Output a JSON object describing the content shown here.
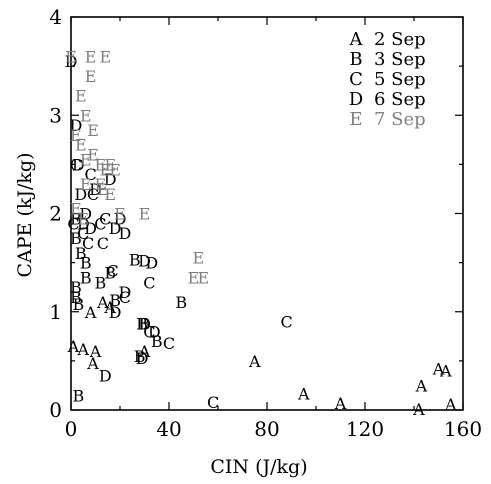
{
  "chart_data": {
    "type": "scatter",
    "xlabel": "CIN (J/kg)",
    "ylabel": "CAPE (kJ/kg)",
    "xlim": [
      0,
      160
    ],
    "ylim": [
      0,
      4
    ],
    "xticks": [
      "0",
      "40",
      "80",
      "120",
      "160"
    ],
    "yticks": [
      "0",
      "1",
      "2",
      "3",
      "4"
    ],
    "grid": false,
    "legend_position": "top-right",
    "series": [
      {
        "name": "A",
        "date": "2 Sep",
        "color": "#000000",
        "points": [
          [
            1,
            0.65
          ],
          [
            5,
            0.62
          ],
          [
            10,
            0.6
          ],
          [
            9,
            0.48
          ],
          [
            13,
            1.1
          ],
          [
            16,
            1.05
          ],
          [
            8,
            1.0
          ],
          [
            30,
            0.6
          ],
          [
            75,
            0.5
          ],
          [
            95,
            0.17
          ],
          [
            110,
            0.07
          ],
          [
            143,
            0.25
          ],
          [
            150,
            0.42
          ],
          [
            153,
            0.4
          ],
          [
            155,
            0.06
          ],
          [
            142,
            0.01
          ]
        ]
      },
      {
        "name": "B",
        "date": "3 Sep",
        "color": "#000000",
        "points": [
          [
            3,
            0.15
          ],
          [
            3,
            1.08
          ],
          [
            2,
            1.75
          ],
          [
            2,
            1.95
          ],
          [
            6,
            1.35
          ],
          [
            12,
            1.3
          ],
          [
            16,
            1.4
          ],
          [
            18,
            1.12
          ],
          [
            26,
            1.53
          ],
          [
            45,
            1.1
          ],
          [
            29,
            0.88
          ],
          [
            30,
            0.88
          ],
          [
            28,
            0.55
          ],
          [
            35,
            0.7
          ],
          [
            4,
            1.6
          ],
          [
            6,
            1.5
          ],
          [
            2,
            1.25
          ],
          [
            2,
            1.15
          ]
        ]
      },
      {
        "name": "C",
        "date": "5 Sep",
        "color": "#000000",
        "points": [
          [
            1,
            1.9
          ],
          [
            7,
            1.7
          ],
          [
            8,
            2.4
          ],
          [
            9,
            2.2
          ],
          [
            12,
            1.9
          ],
          [
            13,
            1.7
          ],
          [
            14,
            1.95
          ],
          [
            17,
            1.42
          ],
          [
            22,
            1.15
          ],
          [
            32,
            1.3
          ],
          [
            32,
            0.8
          ],
          [
            40,
            0.68
          ],
          [
            58,
            0.08
          ],
          [
            88,
            0.9
          ],
          [
            5,
            1.8
          ],
          [
            2,
            2.5
          ]
        ]
      },
      {
        "name": "D",
        "date": "6 Sep",
        "color": "#000000",
        "points": [
          [
            0,
            3.55
          ],
          [
            2,
            2.9
          ],
          [
            3,
            2.5
          ],
          [
            4,
            2.2
          ],
          [
            5,
            1.9
          ],
          [
            6,
            2.0
          ],
          [
            8,
            1.85
          ],
          [
            18,
            1.85
          ],
          [
            20,
            1.95
          ],
          [
            22,
            1.8
          ],
          [
            30,
            1.52
          ],
          [
            33,
            1.5
          ],
          [
            30,
            0.88
          ],
          [
            34,
            0.8
          ],
          [
            29,
            0.53
          ],
          [
            14,
            0.35
          ],
          [
            22,
            1.2
          ],
          [
            18,
            1.0
          ],
          [
            10,
            2.25
          ],
          [
            16,
            2.35
          ]
        ]
      },
      {
        "name": "E",
        "date": "7 Sep",
        "color": "#808080",
        "points": [
          [
            0,
            3.6
          ],
          [
            4,
            3.2
          ],
          [
            6,
            3.0
          ],
          [
            8,
            3.4
          ],
          [
            8,
            3.6
          ],
          [
            14,
            3.6
          ],
          [
            2,
            2.8
          ],
          [
            4,
            2.7
          ],
          [
            6,
            2.55
          ],
          [
            9,
            2.6
          ],
          [
            9,
            2.85
          ],
          [
            12,
            2.5
          ],
          [
            14,
            2.45
          ],
          [
            16,
            2.5
          ],
          [
            18,
            2.45
          ],
          [
            16,
            2.2
          ],
          [
            20,
            2.0
          ],
          [
            30,
            2.0
          ],
          [
            12,
            2.3
          ],
          [
            13,
            2.25
          ],
          [
            6,
            2.3
          ],
          [
            2,
            2.05
          ],
          [
            5,
            1.95
          ],
          [
            52,
            1.55
          ],
          [
            50,
            1.35
          ],
          [
            54,
            1.35
          ]
        ]
      }
    ]
  }
}
